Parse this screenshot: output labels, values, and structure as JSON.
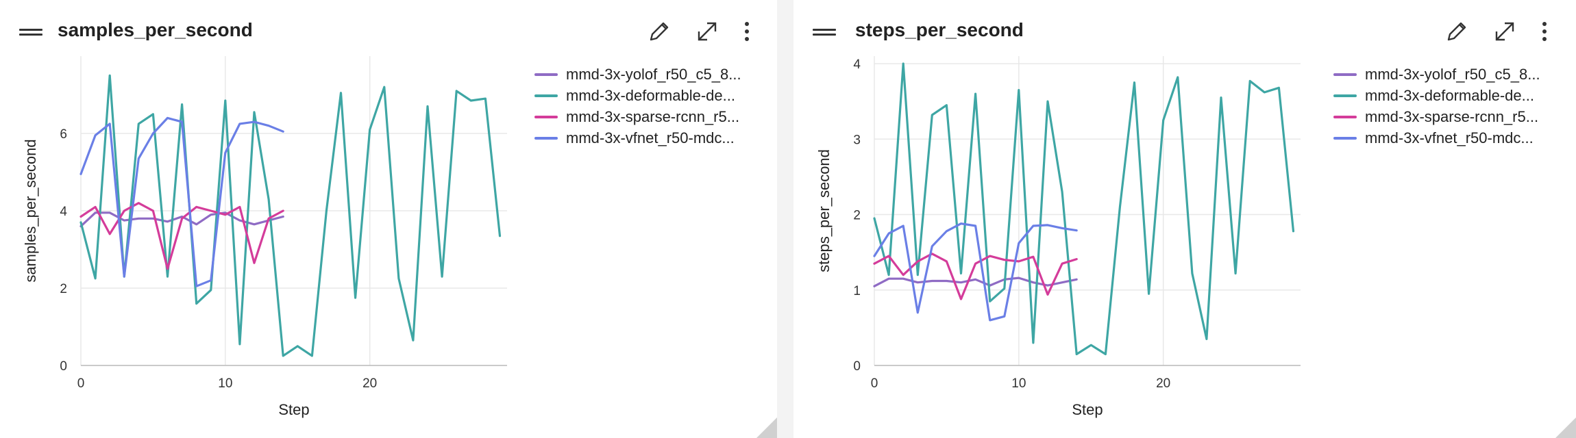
{
  "colors": {
    "yolof": "#8f6bc4",
    "deformable": "#3ea6a4",
    "sparse": "#d43c9a",
    "vfnet": "#6a7fe6",
    "grid": "#e8e8e8",
    "axis": "#bcbcbc"
  },
  "icons": [
    "drag-handle-icon",
    "pencil-icon",
    "expand-icon",
    "more-vertical-icon"
  ],
  "legend_entries": [
    {
      "label": "mmd-3x-yolof_r50_c5_8...",
      "color_key": "yolof"
    },
    {
      "label": "mmd-3x-deformable-de...",
      "color_key": "deformable"
    },
    {
      "label": "mmd-3x-sparse-rcnn_r5...",
      "color_key": "sparse"
    },
    {
      "label": "mmd-3x-vfnet_r50-mdc...",
      "color_key": "vfnet"
    }
  ],
  "legend_entries_right": [
    {
      "label": "mmd-3x-yolof_r50_c5_8...",
      "color_key": "yolof"
    },
    {
      "label": "mmd-3x-deformable-de...",
      "color_key": "deformable"
    },
    {
      "label": "mmd-3x-sparse-rcnn_r5...",
      "color_key": "sparse"
    },
    {
      "label": "mmd-3x-vfnet_r50-mdc...",
      "color_key": "vfnet"
    }
  ],
  "chart_data": [
    {
      "type": "line",
      "title": "samples_per_second",
      "xlabel": "Step",
      "ylabel": "samples_per_second",
      "xlim": [
        0,
        29.5
      ],
      "ylim": [
        0,
        8
      ],
      "xticks": [
        0,
        10,
        20
      ],
      "yticks": [
        0,
        2,
        4,
        6
      ],
      "grid": true,
      "legend_position": "right",
      "series": [
        {
          "name": "mmd-3x-yolof_r50_c5_8...",
          "color_key": "yolof",
          "x": [
            0,
            1,
            2,
            3,
            4,
            5,
            6,
            7,
            8,
            9,
            10,
            11,
            12,
            13,
            14
          ],
          "y": [
            3.6,
            3.95,
            3.95,
            3.75,
            3.8,
            3.8,
            3.72,
            3.85,
            3.65,
            3.9,
            3.95,
            3.75,
            3.65,
            3.75,
            3.85
          ]
        },
        {
          "name": "mmd-3x-deformable-de...",
          "color_key": "deformable",
          "x": [
            0,
            1,
            2,
            3,
            4,
            5,
            6,
            7,
            8,
            9,
            10,
            11,
            12,
            13,
            14,
            15,
            16,
            17,
            18,
            19,
            20,
            21,
            22,
            23,
            24,
            25,
            26,
            27,
            28,
            29
          ],
          "y": [
            3.7,
            2.25,
            7.5,
            2.3,
            6.25,
            6.5,
            2.3,
            6.75,
            1.6,
            1.95,
            6.85,
            0.55,
            6.55,
            4.3,
            0.25,
            0.5,
            0.25,
            4.0,
            7.05,
            1.75,
            6.1,
            7.2,
            2.25,
            0.65,
            6.7,
            2.3,
            7.1,
            6.85,
            6.9,
            3.35
          ]
        },
        {
          "name": "mmd-3x-sparse-rcnn_r5...",
          "color_key": "sparse",
          "x": [
            0,
            1,
            2,
            3,
            4,
            5,
            6,
            7,
            8,
            9,
            10,
            11,
            12,
            13,
            14
          ],
          "y": [
            3.85,
            4.1,
            3.4,
            4.0,
            4.2,
            4.0,
            2.5,
            3.8,
            4.1,
            4.0,
            3.9,
            4.1,
            2.65,
            3.8,
            4.0
          ]
        },
        {
          "name": "mmd-3x-vfnet_r50-mdc...",
          "color_key": "vfnet",
          "x": [
            0,
            1,
            2,
            3,
            4,
            5,
            6,
            7,
            8,
            9,
            10,
            11,
            12,
            13,
            14
          ],
          "y": [
            4.95,
            5.95,
            6.25,
            2.3,
            5.35,
            6.0,
            6.4,
            6.3,
            2.05,
            2.2,
            5.5,
            6.25,
            6.3,
            6.2,
            6.05
          ]
        }
      ]
    },
    {
      "type": "line",
      "title": "steps_per_second",
      "xlabel": "Step",
      "ylabel": "steps_per_second",
      "xlim": [
        0,
        29.5
      ],
      "ylim": [
        0,
        4.1
      ],
      "xticks": [
        0,
        10,
        20
      ],
      "yticks": [
        0,
        1,
        2,
        3,
        4
      ],
      "grid": true,
      "legend_position": "right",
      "series": [
        {
          "name": "mmd-3x-yolof_r50_c5_8...",
          "color_key": "yolof",
          "x": [
            0,
            1,
            2,
            3,
            4,
            5,
            6,
            7,
            8,
            9,
            10,
            11,
            12,
            13,
            14
          ],
          "y": [
            1.05,
            1.15,
            1.15,
            1.1,
            1.12,
            1.12,
            1.1,
            1.14,
            1.06,
            1.14,
            1.16,
            1.1,
            1.06,
            1.1,
            1.14
          ]
        },
        {
          "name": "mmd-3x-deformable-de...",
          "color_key": "deformable",
          "x": [
            0,
            1,
            2,
            3,
            4,
            5,
            6,
            7,
            8,
            9,
            10,
            11,
            12,
            13,
            14,
            15,
            16,
            17,
            18,
            19,
            20,
            21,
            22,
            23,
            24,
            25,
            26,
            27,
            28,
            29
          ],
          "y": [
            1.95,
            1.2,
            4.0,
            1.2,
            3.32,
            3.45,
            1.22,
            3.6,
            0.85,
            1.02,
            3.65,
            0.3,
            3.5,
            2.3,
            0.15,
            0.27,
            0.15,
            2.1,
            3.75,
            0.95,
            3.25,
            3.82,
            1.22,
            0.35,
            3.55,
            1.22,
            3.77,
            3.62,
            3.68,
            1.78
          ]
        },
        {
          "name": "mmd-3x-sparse-rcnn_r5...",
          "color_key": "sparse",
          "x": [
            0,
            1,
            2,
            3,
            4,
            5,
            6,
            7,
            8,
            9,
            10,
            11,
            12,
            13,
            14
          ],
          "y": [
            1.35,
            1.45,
            1.2,
            1.38,
            1.48,
            1.38,
            0.88,
            1.35,
            1.45,
            1.4,
            1.38,
            1.44,
            0.94,
            1.35,
            1.41
          ]
        },
        {
          "name": "mmd-3x-vfnet_r50-mdc...",
          "color_key": "vfnet",
          "x": [
            0,
            1,
            2,
            3,
            4,
            5,
            6,
            7,
            8,
            9,
            10,
            11,
            12,
            13,
            14
          ],
          "y": [
            1.45,
            1.75,
            1.85,
            0.7,
            1.58,
            1.78,
            1.88,
            1.85,
            0.6,
            0.65,
            1.62,
            1.85,
            1.86,
            1.82,
            1.79
          ]
        }
      ]
    }
  ]
}
